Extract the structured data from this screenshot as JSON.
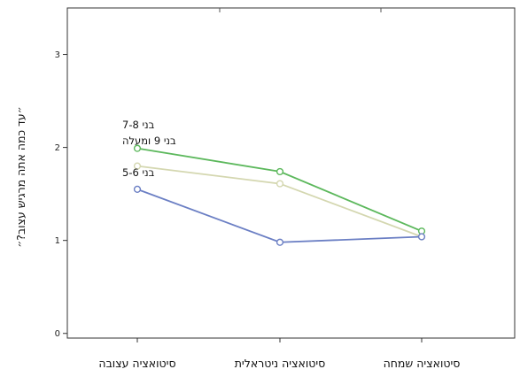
{
  "chart_data": {
    "type": "line",
    "title": "",
    "xlabel": "",
    "ylabel": "״עד כמה אתה מרגיש עצוב?״",
    "categories": [
      "סיטואציה עצובה",
      "סיטואציה ניטראלית",
      "סיטואציה שמחה"
    ],
    "yticks": [
      "0",
      "1",
      "2",
      "3"
    ],
    "ylim": [
      -0.05,
      3.5
    ],
    "grid": false,
    "legend": "inline-left",
    "series": [
      {
        "name": "בני 7-8",
        "values": [
          1.99,
          1.74,
          1.1
        ],
        "color": "#5cb85c"
      },
      {
        "name": "בני 9 ומעלה",
        "values": [
          1.8,
          1.61,
          1.04
        ],
        "color": "#d4d7b0"
      },
      {
        "name": "בני 5-6",
        "values": [
          1.55,
          0.98,
          1.04
        ],
        "color": "#6b7fc4"
      }
    ]
  }
}
